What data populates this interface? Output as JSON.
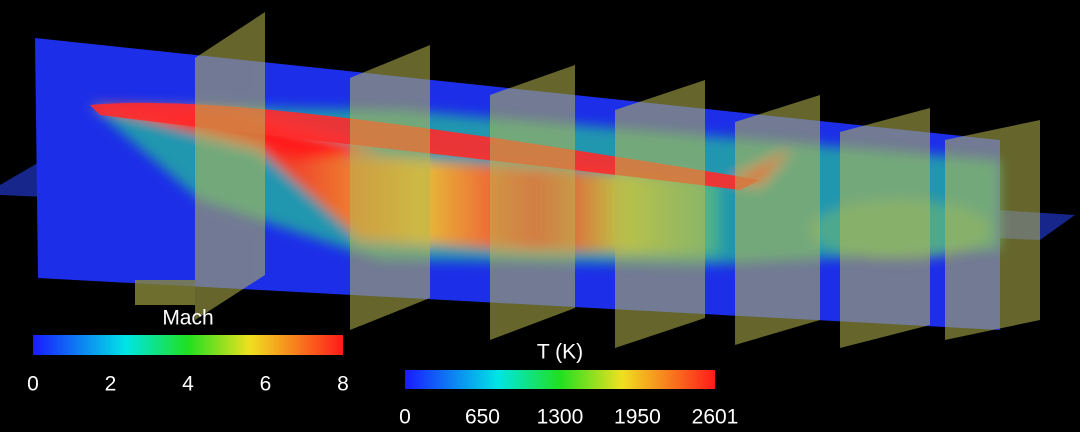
{
  "colorbars": [
    {
      "title": "Mach",
      "lim": [
        0,
        8
      ],
      "ticks": [
        0,
        2,
        4,
        6,
        8
      ]
    },
    {
      "title": "T (K)",
      "lim": [
        0,
        2601
      ],
      "ticks": [
        0,
        650,
        1300,
        1950,
        2601
      ]
    }
  ]
}
